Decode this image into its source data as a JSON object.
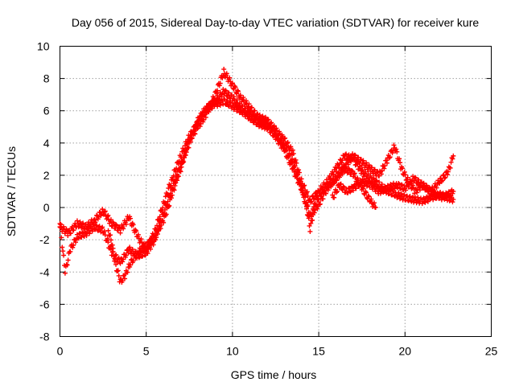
{
  "chart_data": {
    "type": "scatter",
    "title": "Day 056 of 2015, Sidereal Day-to-day VTEC variation (SDTVAR) for receiver kure",
    "xlabel": "GPS time / hours",
    "ylabel": "SDTVAR / TECUs",
    "xlim": [
      0,
      25
    ],
    "ylim": [
      -8,
      10
    ],
    "xticks": [
      0,
      5,
      10,
      15,
      20,
      25
    ],
    "yticks": [
      -8,
      -6,
      -4,
      -2,
      0,
      2,
      4,
      6,
      8,
      10
    ],
    "grid": true,
    "marker": "+",
    "color": "#ff0000",
    "series": [
      {
        "name": "track-1",
        "points": [
          [
            0,
            -1.2
          ],
          [
            0.5,
            -1.6
          ],
          [
            1,
            -1.0
          ],
          [
            1.5,
            -1.2
          ],
          [
            2,
            -0.8
          ],
          [
            2.5,
            -0.2
          ],
          [
            3,
            -1.0
          ],
          [
            3.5,
            -1.4
          ],
          [
            4,
            -0.6
          ],
          [
            4.5,
            -1.8
          ],
          [
            5,
            -2.6
          ],
          [
            5.5,
            -1.5
          ],
          [
            6,
            0.2
          ],
          [
            6.5,
            1.8
          ],
          [
            7,
            3.2
          ],
          [
            7.5,
            4.4
          ],
          [
            8,
            5.3
          ],
          [
            8.5,
            6.1
          ],
          [
            9,
            6.4
          ],
          [
            9.5,
            6.6
          ],
          [
            10,
            6.3
          ],
          [
            10.5,
            6.0
          ],
          [
            11,
            5.6
          ],
          [
            11.5,
            5.2
          ],
          [
            12,
            5.0
          ],
          [
            12.5,
            4.4
          ],
          [
            13,
            3.6
          ],
          [
            13.5,
            2.4
          ],
          [
            14,
            1.2
          ],
          [
            14.5,
            -0.5
          ],
          [
            15,
            0.2
          ],
          [
            15.5,
            1.2
          ],
          [
            16,
            1.8
          ],
          [
            16.5,
            2.4
          ],
          [
            17,
            2.1
          ],
          [
            17.5,
            1.2
          ],
          [
            18,
            0.4
          ],
          [
            18.3,
            0
          ]
        ]
      },
      {
        "name": "track-2",
        "points": [
          [
            0,
            -1.0
          ],
          [
            0.3,
            -4.0
          ],
          [
            0.6,
            -2.6
          ],
          [
            1,
            -1.8
          ],
          [
            1.5,
            -1.6
          ],
          [
            2,
            -1.2
          ],
          [
            2.5,
            -1.4
          ],
          [
            3,
            -2.8
          ],
          [
            3.5,
            -3.4
          ],
          [
            4,
            -2.6
          ],
          [
            4.5,
            -3.0
          ],
          [
            5,
            -2.8
          ],
          [
            5.5,
            -2.0
          ],
          [
            6,
            -0.4
          ],
          [
            6.5,
            1.2
          ],
          [
            7,
            2.4
          ],
          [
            7.5,
            4.2
          ],
          [
            8,
            5.0
          ],
          [
            8.5,
            5.8
          ],
          [
            9,
            7.0
          ],
          [
            9.5,
            8.4
          ],
          [
            10,
            7.6
          ],
          [
            10.5,
            6.8
          ],
          [
            11,
            6.2
          ],
          [
            11.5,
            5.6
          ],
          [
            12,
            5.4
          ],
          [
            12.5,
            4.8
          ],
          [
            13,
            4.2
          ],
          [
            13.5,
            3.4
          ],
          [
            14,
            1.6
          ],
          [
            14.5,
            0.4
          ],
          [
            15,
            1.0
          ],
          [
            15.5,
            1.6
          ],
          [
            16,
            2.4
          ],
          [
            16.5,
            3.2
          ],
          [
            17,
            3.0
          ],
          [
            17.5,
            2.2
          ],
          [
            18,
            1.8
          ],
          [
            18.5,
            1.4
          ],
          [
            19,
            1.0
          ],
          [
            19.5,
            0.8
          ],
          [
            20,
            0.6
          ],
          [
            20.5,
            0.5
          ],
          [
            21,
            0.4
          ],
          [
            21.5,
            0.6
          ],
          [
            22,
            0.8
          ],
          [
            22.5,
            0.6
          ],
          [
            22.8,
            0.5
          ]
        ]
      },
      {
        "name": "track-3",
        "points": [
          [
            2.8,
            -1.4
          ],
          [
            3,
            -2.2
          ],
          [
            3.2,
            -3.4
          ],
          [
            3.5,
            -4.6
          ],
          [
            3.8,
            -4.2
          ],
          [
            4,
            -3.6
          ],
          [
            4.5,
            -2.8
          ],
          [
            5,
            -2.4
          ],
          [
            5.5,
            -1.8
          ],
          [
            6,
            -0.8
          ],
          [
            6.5,
            0.8
          ],
          [
            7,
            2.6
          ],
          [
            7.5,
            4.0
          ],
          [
            8,
            5.4
          ],
          [
            8.5,
            6.2
          ],
          [
            9,
            6.6
          ],
          [
            9.5,
            7.2
          ],
          [
            10,
            6.8
          ],
          [
            10.5,
            6.2
          ],
          [
            11,
            5.8
          ],
          [
            11.5,
            5.4
          ],
          [
            12,
            5.2
          ],
          [
            12.5,
            4.6
          ],
          [
            13,
            3.8
          ],
          [
            13.5,
            2.8
          ],
          [
            14,
            1.2
          ],
          [
            14.3,
            0.0
          ],
          [
            14.5,
            -1.4
          ],
          [
            14.8,
            0.4
          ],
          [
            15.2,
            1.0
          ],
          [
            15.6,
            1.4
          ],
          [
            16,
            1.8
          ],
          [
            16.5,
            2.6
          ],
          [
            17,
            3.2
          ],
          [
            17.5,
            2.8
          ],
          [
            18,
            2.4
          ],
          [
            18.5,
            2.0
          ],
          [
            19,
            3.0
          ],
          [
            19.4,
            3.8
          ],
          [
            19.8,
            2.4
          ],
          [
            20.2,
            1.6
          ],
          [
            20.6,
            1.0
          ],
          [
            21,
            1.4
          ],
          [
            21.5,
            1.0
          ],
          [
            22,
            1.6
          ],
          [
            22.5,
            2.2
          ],
          [
            22.8,
            3.2
          ]
        ]
      },
      {
        "name": "track-4",
        "points": [
          [
            15.8,
            0.6
          ],
          [
            16.2,
            1.4
          ],
          [
            16.6,
            1.0
          ],
          [
            17,
            1.2
          ],
          [
            17.5,
            1.6
          ],
          [
            18,
            1.4
          ],
          [
            18.5,
            1.0
          ],
          [
            19,
            1.2
          ],
          [
            19.5,
            1.4
          ],
          [
            20,
            1.2
          ],
          [
            20.5,
            1.8
          ],
          [
            21,
            1.4
          ],
          [
            21.5,
            1.0
          ],
          [
            22,
            0.6
          ],
          [
            22.5,
            0.8
          ],
          [
            22.8,
            1.0
          ]
        ]
      }
    ]
  }
}
